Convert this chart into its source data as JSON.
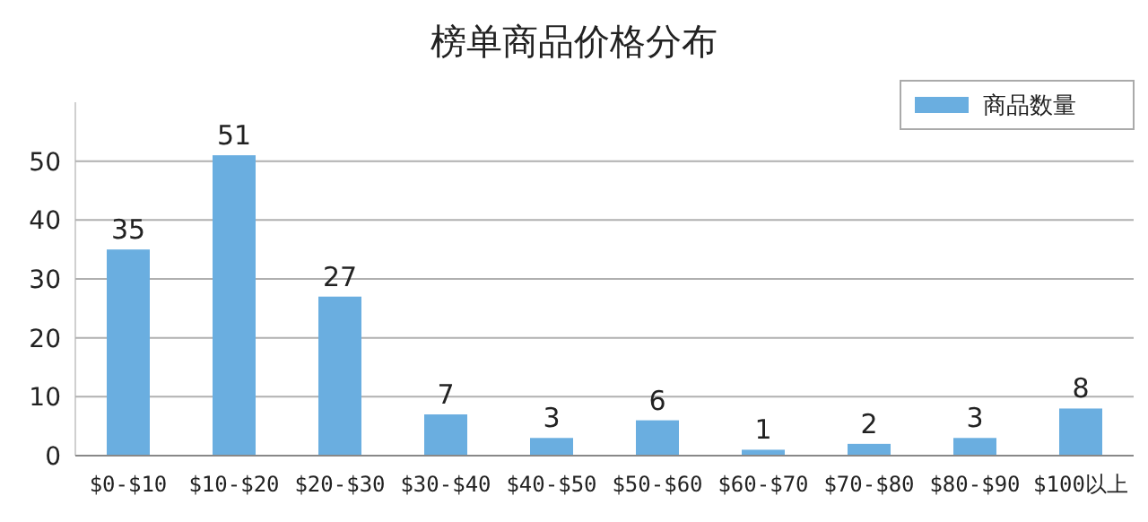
{
  "chart_data": {
    "type": "bar",
    "title": "榜单商品价格分布",
    "categories": [
      "$0-$10",
      "$10-$20",
      "$20-$30",
      "$30-$40",
      "$40-$50",
      "$50-$60",
      "$60-$70",
      "$70-$80",
      "$80-$90",
      "$100以上"
    ],
    "series": [
      {
        "name": "商品数量",
        "color": "#6aaee0",
        "values": [
          35,
          51,
          27,
          7,
          3,
          6,
          1,
          2,
          3,
          8
        ]
      }
    ],
    "ylim": [
      0,
      60
    ],
    "yticks": [
      0,
      10,
      20,
      30,
      40,
      50
    ],
    "grid": "y",
    "legend": "top right",
    "data_labels": true
  }
}
